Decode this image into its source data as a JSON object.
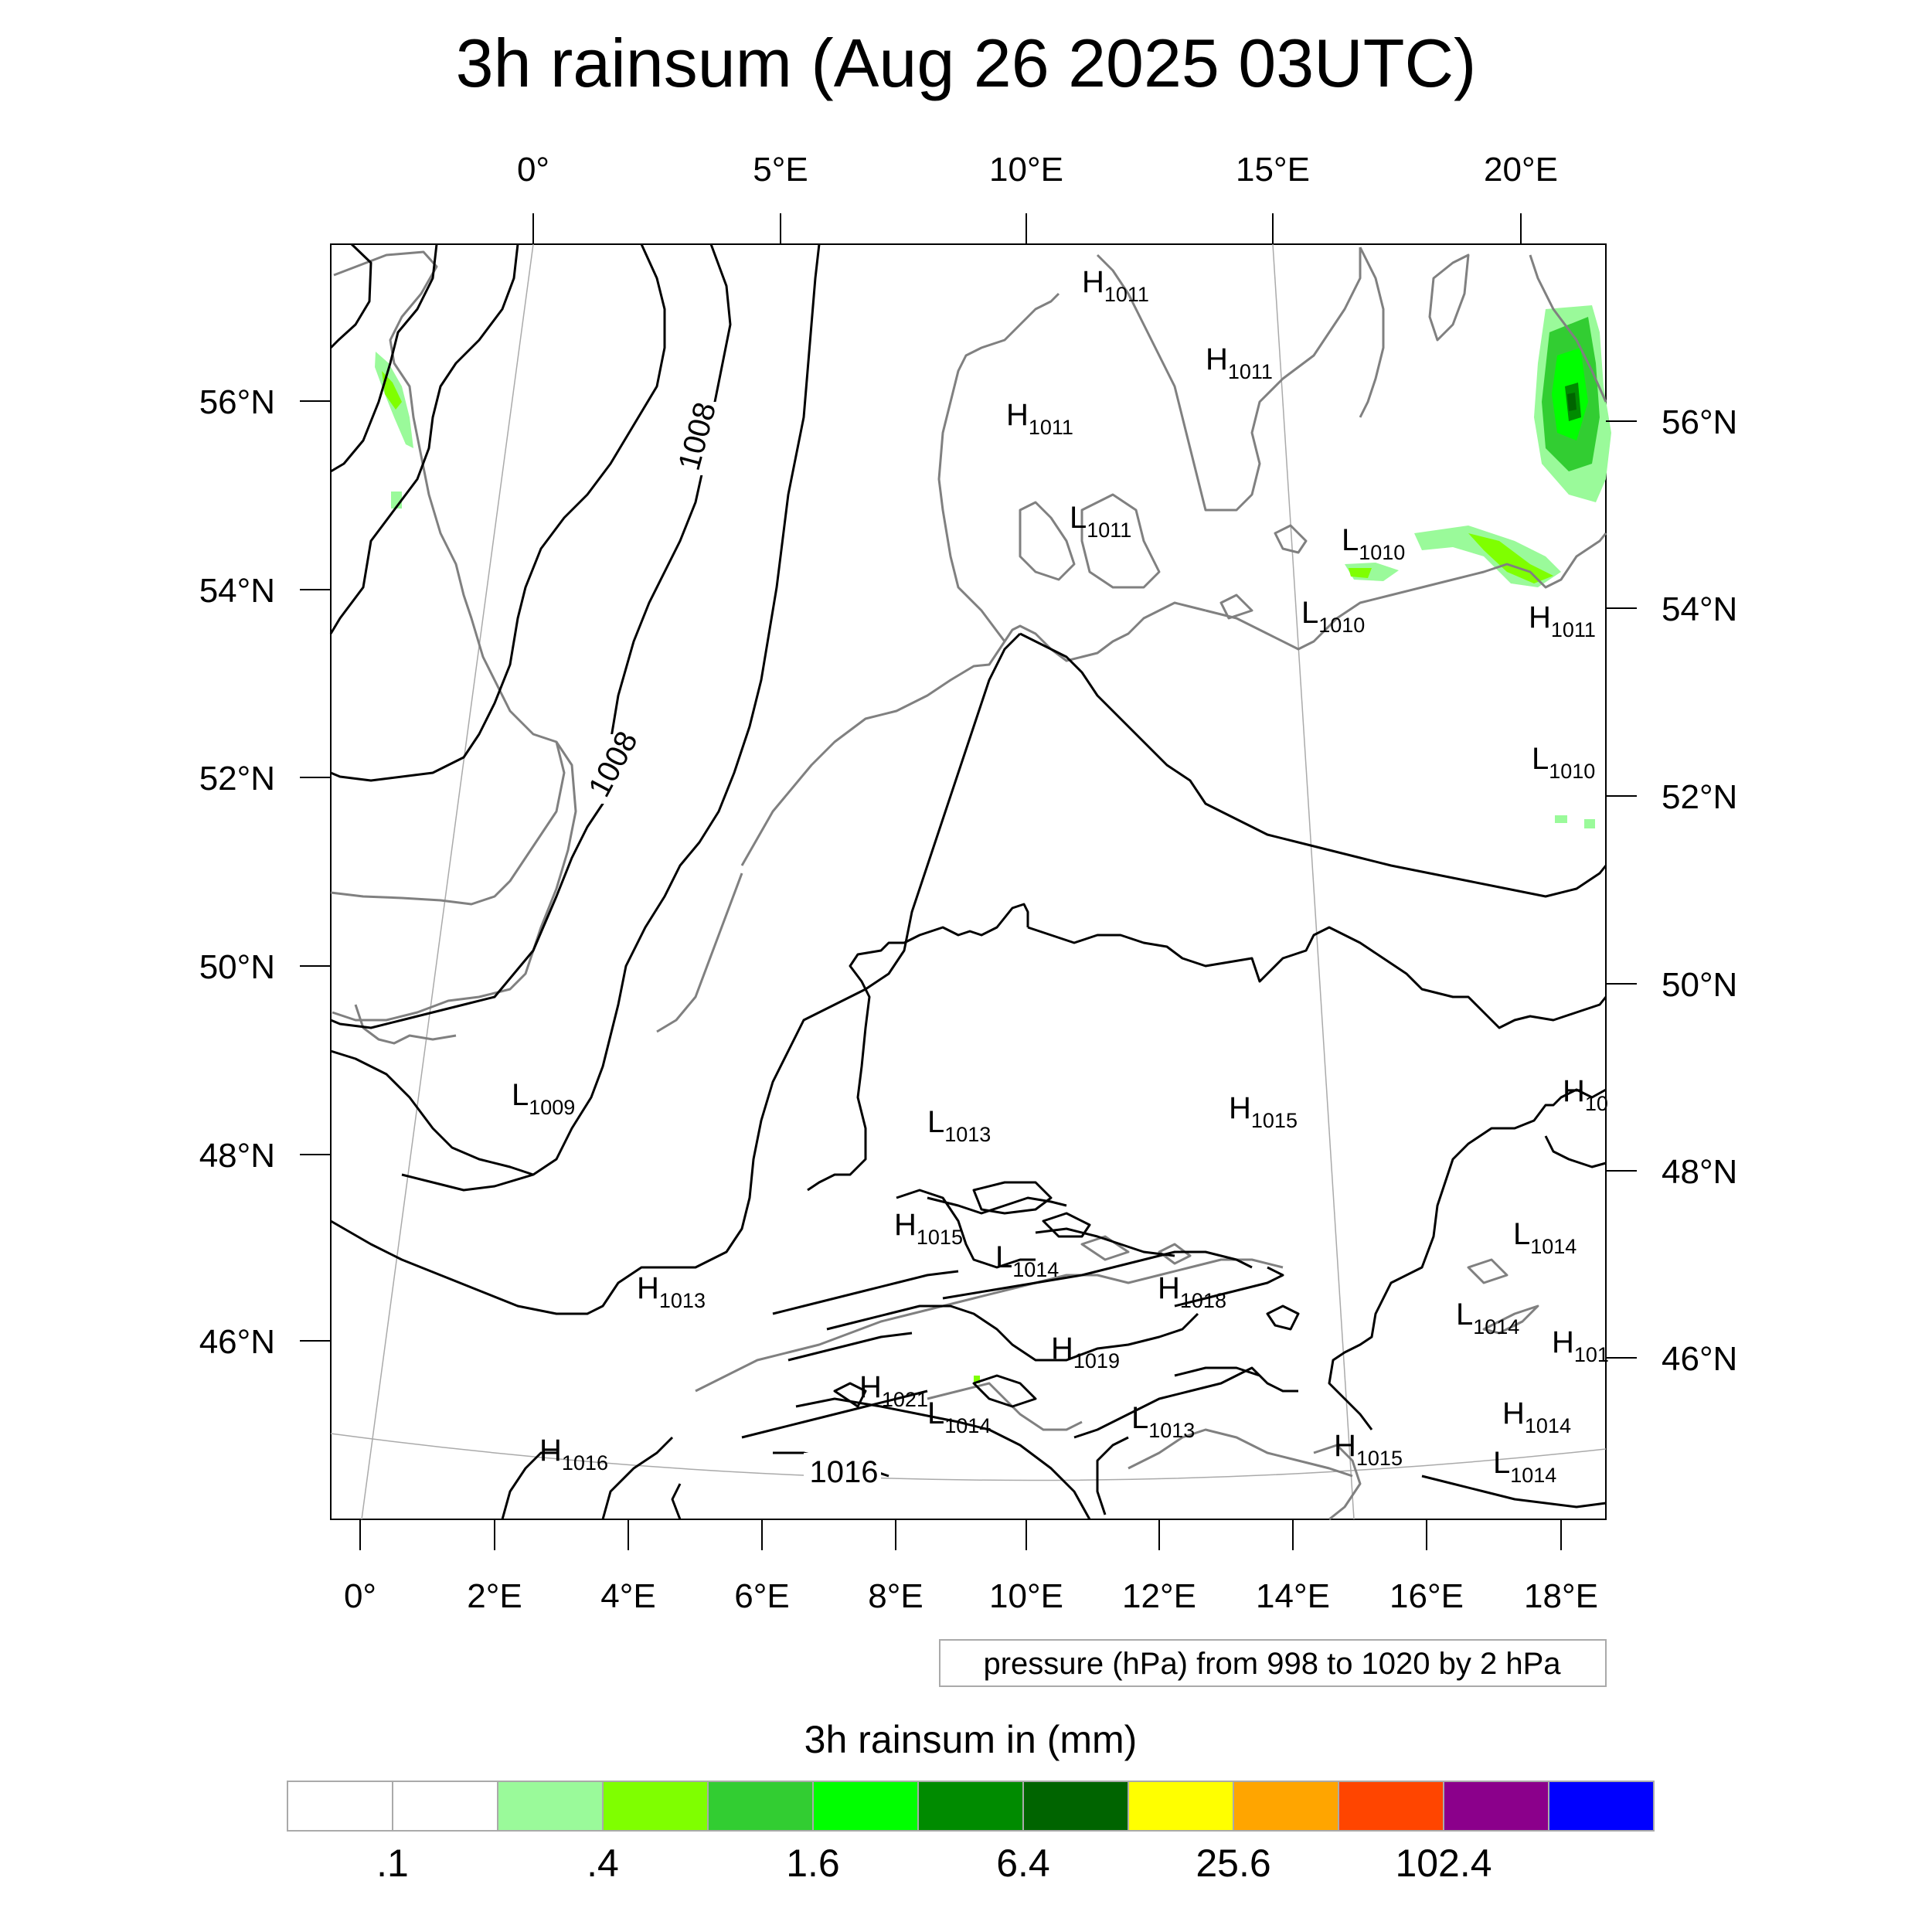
{
  "title": "3h rainsum (Aug 26 2025 03UTC)",
  "axes": {
    "top_lon_labels": [
      "0°",
      "5°E",
      "10°E",
      "15°E",
      "20°E"
    ],
    "bottom_lon_labels": [
      "0°",
      "2°E",
      "4°E",
      "6°E",
      "8°E",
      "10°E",
      "12°E",
      "14°E",
      "16°E",
      "18°E"
    ],
    "left_lat_labels": [
      "56°N",
      "54°N",
      "52°N",
      "50°N",
      "48°N",
      "46°N"
    ],
    "right_lat_labels": [
      "56°N",
      "54°N",
      "52°N",
      "50°N",
      "48°N",
      "46°N"
    ]
  },
  "isobar_labels": [
    "1008",
    "1008",
    "1016"
  ],
  "pressure_centers": [
    {
      "type": "H",
      "value": "1011"
    },
    {
      "type": "H",
      "value": "1011"
    },
    {
      "type": "H",
      "value": "1011"
    },
    {
      "type": "L",
      "value": "1011"
    },
    {
      "type": "L",
      "value": "1010"
    },
    {
      "type": "L",
      "value": "1010"
    },
    {
      "type": "H",
      "value": "1011"
    },
    {
      "type": "L",
      "value": "1010"
    },
    {
      "type": "L",
      "value": "1009"
    },
    {
      "type": "L",
      "value": "1013"
    },
    {
      "type": "H",
      "value": "1015"
    },
    {
      "type": "H",
      "value": "10"
    },
    {
      "type": "H",
      "value": "1015"
    },
    {
      "type": "L",
      "value": "1014"
    },
    {
      "type": "H",
      "value": "1018"
    },
    {
      "type": "H",
      "value": "1013"
    },
    {
      "type": "L",
      "value": "1014"
    },
    {
      "type": "L",
      "value": "1014"
    },
    {
      "type": "H",
      "value": "101"
    },
    {
      "type": "H",
      "value": "1019"
    },
    {
      "type": "H",
      "value": "1021"
    },
    {
      "type": "L",
      "value": "1014"
    },
    {
      "type": "L",
      "value": "1013"
    },
    {
      "type": "H",
      "value": "1014"
    },
    {
      "type": "H",
      "value": "1016"
    },
    {
      "type": "H",
      "value": "1015"
    },
    {
      "type": "L",
      "value": "1014"
    }
  ],
  "info_box": "pressure (hPa) from 998 to 1020 by 2 hPa",
  "colorbar": {
    "title": "3h rainsum in (mm)",
    "colors": [
      "#ffffff",
      "#ffffff",
      "#9afa9a",
      "#7fff00",
      "#32cd32",
      "#00ff00",
      "#008b00",
      "#006400",
      "#ffff00",
      "#ffa500",
      "#ff4500",
      "#8b008b",
      "#0000ff"
    ],
    "labels": [
      ".1",
      ".4",
      "1.6",
      "6.4",
      "25.6",
      "102.4"
    ]
  }
}
